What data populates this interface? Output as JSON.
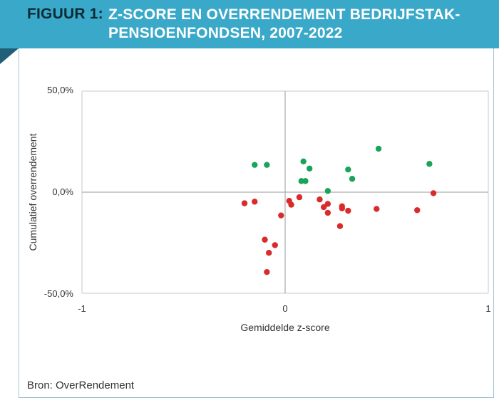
{
  "header": {
    "label": "FIGUUR 1:",
    "title": "Z-SCORE EN OVERRENDEMENT BEDRIJFSTAK-PENSIOENFONDSEN, 2007-2022"
  },
  "source": "Bron: OverRendement",
  "colors": {
    "header_bg": "#3aa9c9",
    "green": "#1aa35a",
    "red": "#d92b2b"
  },
  "chart_data": {
    "type": "scatter",
    "xlabel": "Gemiddelde z-score",
    "ylabel": "Cumulatief overrendement",
    "xlim": [
      -1,
      1
    ],
    "ylim": [
      -50,
      50
    ],
    "x_ticks": [
      "-1",
      "0",
      "1"
    ],
    "y_ticks": [
      "-50,0%",
      "0,0%",
      "50,0%"
    ],
    "grid": false,
    "series": [
      {
        "color": "#1aa35a",
        "points": [
          {
            "x": -0.15,
            "y": 13.5
          },
          {
            "x": -0.09,
            "y": 13.5
          },
          {
            "x": 0.08,
            "y": 5.5
          },
          {
            "x": 0.09,
            "y": 15.2
          },
          {
            "x": 0.1,
            "y": 5.5
          },
          {
            "x": 0.12,
            "y": 11.7
          },
          {
            "x": 0.21,
            "y": 0.6
          },
          {
            "x": 0.31,
            "y": 11.2
          },
          {
            "x": 0.33,
            "y": 6.6
          },
          {
            "x": 0.46,
            "y": 21.5
          },
          {
            "x": 0.71,
            "y": 14.0
          }
        ]
      },
      {
        "color": "#d92b2b",
        "points": [
          {
            "x": -0.2,
            "y": -5.5
          },
          {
            "x": -0.15,
            "y": -4.7
          },
          {
            "x": -0.1,
            "y": -23.5
          },
          {
            "x": -0.08,
            "y": -30.0
          },
          {
            "x": -0.09,
            "y": -39.5
          },
          {
            "x": -0.05,
            "y": -26.2
          },
          {
            "x": -0.02,
            "y": -11.5
          },
          {
            "x": 0.02,
            "y": -4.3
          },
          {
            "x": 0.03,
            "y": -6.2
          },
          {
            "x": 0.07,
            "y": -2.5
          },
          {
            "x": 0.17,
            "y": -3.6
          },
          {
            "x": 0.19,
            "y": -7.4
          },
          {
            "x": 0.21,
            "y": -5.8
          },
          {
            "x": 0.21,
            "y": -10.2
          },
          {
            "x": 0.27,
            "y": -16.8
          },
          {
            "x": 0.28,
            "y": -7.0
          },
          {
            "x": 0.28,
            "y": -8.0
          },
          {
            "x": 0.31,
            "y": -9.2
          },
          {
            "x": 0.45,
            "y": -8.3
          },
          {
            "x": 0.65,
            "y": -8.9
          },
          {
            "x": 0.73,
            "y": -0.5
          }
        ]
      }
    ]
  }
}
